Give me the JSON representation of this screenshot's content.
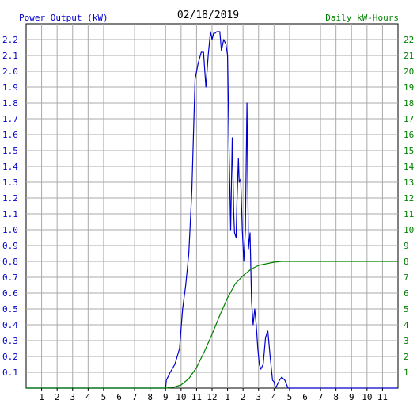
{
  "chart_data": {
    "type": "line",
    "title": "02/18/2019",
    "ylabel_left": "Power Output (kW)",
    "ylabel_right": "Daily kW-Hours",
    "x_ticks": [
      "1",
      "2",
      "3",
      "4",
      "5",
      "6",
      "7",
      "8",
      "9",
      "10",
      "11",
      "12",
      "1",
      "2",
      "3",
      "4",
      "5",
      "6",
      "7",
      "8",
      "9",
      "10",
      "11"
    ],
    "x_range_hours": [
      0,
      24
    ],
    "ylim_left": [
      0,
      2.3
    ],
    "y_ticks_left": [
      "0.1",
      "0.2",
      "0.3",
      "0.4",
      "0.5",
      "0.6",
      "0.7",
      "0.8",
      "0.9",
      "1.0",
      "1.1",
      "1.2",
      "1.3",
      "1.4",
      "1.5",
      "1.6",
      "1.7",
      "1.8",
      "1.9",
      "2.0",
      "2.1",
      "2.2"
    ],
    "ylim_right": [
      0,
      23
    ],
    "y_ticks_right": [
      "1",
      "2",
      "3",
      "4",
      "5",
      "6",
      "7",
      "8",
      "9",
      "10",
      "11",
      "12",
      "13",
      "14",
      "15",
      "16",
      "17",
      "18",
      "19",
      "20",
      "21",
      "22"
    ],
    "grid": true,
    "colors": {
      "power": "#0000cc",
      "energy": "#008000",
      "left_axis_text": "#0000cc",
      "right_axis_text": "#008000",
      "grid": "#aaaaaa",
      "axis": "#000000"
    },
    "series": [
      {
        "axis": "left",
        "x": [
          0,
          8.0,
          9.0,
          9.05,
          9.3,
          9.6,
          9.9,
          10.1,
          10.3,
          10.5,
          10.7,
          10.9,
          11.1,
          11.3,
          11.45,
          11.6,
          11.75,
          11.9,
          12.0,
          12.1,
          12.2,
          12.3,
          12.5,
          12.6,
          12.75,
          12.9,
          13.0,
          13.1,
          13.2,
          13.3,
          13.4,
          13.45,
          13.55,
          13.6,
          13.7,
          13.75,
          13.85,
          13.95,
          14.05,
          14.15,
          14.25,
          14.35,
          14.45,
          14.55,
          14.65,
          14.75,
          14.85,
          14.95,
          15.05,
          15.15,
          15.3,
          15.45,
          15.6,
          15.75,
          15.9,
          16.0,
          16.1,
          16.25,
          16.35,
          16.5,
          16.7,
          16.9,
          17.1,
          17.3,
          17.5,
          17.6,
          24
        ],
        "values": [
          0,
          0,
          0,
          0.05,
          0.1,
          0.15,
          0.25,
          0.5,
          0.65,
          0.85,
          1.25,
          1.95,
          2.05,
          2.12,
          2.12,
          1.9,
          2.1,
          2.25,
          2.2,
          2.24,
          2.24,
          2.25,
          2.25,
          2.13,
          2.2,
          2.17,
          2.1,
          1.5,
          1.0,
          1.58,
          1.1,
          0.98,
          0.95,
          1.15,
          1.45,
          1.3,
          1.32,
          1.0,
          0.8,
          1.0,
          1.8,
          0.88,
          0.98,
          0.55,
          0.4,
          0.5,
          0.4,
          0.25,
          0.15,
          0.12,
          0.15,
          0.32,
          0.36,
          0.2,
          0.05,
          0.04,
          0.0,
          0.03,
          0.05,
          0.07,
          0.05,
          0.0,
          0.0,
          0.0,
          0.0,
          0.0,
          0.0
        ]
      },
      {
        "axis": "right",
        "x": [
          0,
          8.0,
          9.0,
          9.5,
          10.0,
          10.5,
          11.0,
          11.5,
          12.0,
          12.5,
          13.0,
          13.5,
          14.0,
          14.5,
          15.0,
          15.5,
          16.0,
          16.5,
          17.0,
          18.0,
          20.0,
          24.0
        ],
        "values": [
          0,
          0,
          0,
          0.05,
          0.2,
          0.6,
          1.3,
          2.3,
          3.4,
          4.6,
          5.7,
          6.6,
          7.1,
          7.5,
          7.75,
          7.85,
          7.95,
          8.0,
          8.0,
          8.0,
          8.0,
          8.0
        ]
      }
    ]
  }
}
